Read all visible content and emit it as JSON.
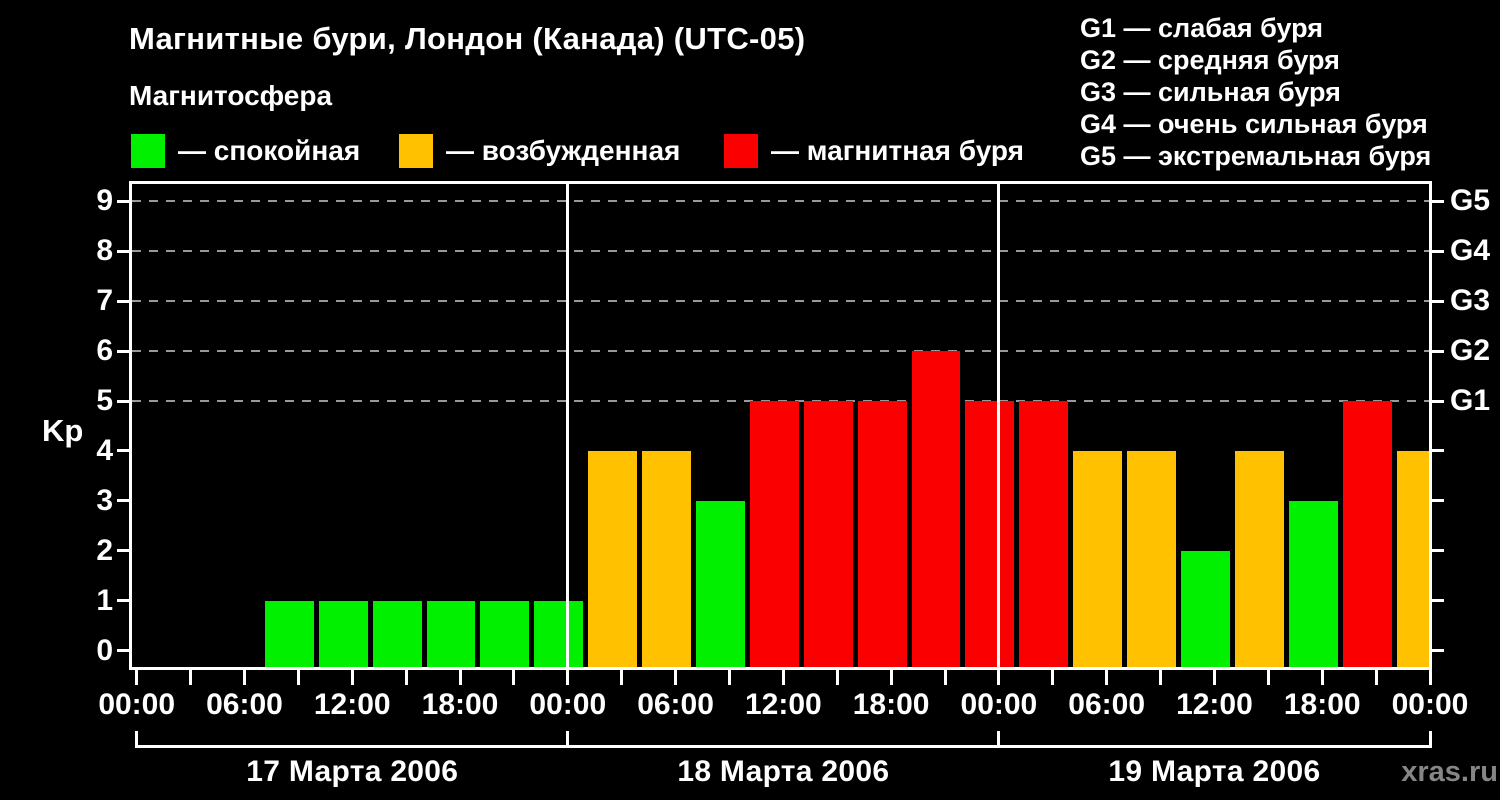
{
  "header": {
    "title": "Магнитные бури, Лондон (Канада) (UTC-05)",
    "subtitle": "Магнитосфера"
  },
  "legend": {
    "items": [
      {
        "name": "quiet",
        "label": "— спокойная",
        "color": "#00f000"
      },
      {
        "name": "excited",
        "label": "— возбужденная",
        "color": "#ffc100"
      },
      {
        "name": "storm",
        "label": "— магнитная буря",
        "color": "#fa0000"
      }
    ]
  },
  "storm_scale_legend": {
    "items": [
      "G1 — слабая буря",
      "G2 — средняя буря",
      "G3 — сильная буря",
      "G4 — очень сильная буря",
      "G5 — экстремальная буря"
    ]
  },
  "watermark": "xras.ru",
  "chart_data": {
    "type": "bar",
    "title": "Магнитные бури, Лондон (Канада) (UTC-05)",
    "ylabel": "Kp",
    "ylim": [
      0,
      9
    ],
    "y_ticks": [
      0,
      1,
      2,
      3,
      4,
      5,
      6,
      7,
      8,
      9
    ],
    "grid_kp_levels": [
      5,
      6,
      7,
      8,
      9
    ],
    "right_axis": {
      "labels": [
        "G1",
        "G2",
        "G3",
        "G4",
        "G5"
      ],
      "kp_levels": [
        5,
        6,
        7,
        8,
        9
      ]
    },
    "x_tick_interval_hours": 3,
    "x_label_every_hours": 6,
    "x_labels_cycle": [
      "00:00",
      "06:00",
      "12:00",
      "18:00"
    ],
    "bar_interval_hours": 3,
    "bar_start_offset_hours": 1,
    "days": [
      {
        "date": "17 Марта 2006",
        "kp_values": [
          0,
          0,
          1,
          1,
          1,
          1,
          1,
          1
        ]
      },
      {
        "date": "18 Марта 2006",
        "kp_values": [
          4,
          4,
          3,
          5,
          5,
          5,
          6,
          5
        ]
      },
      {
        "date": "19 Марта 2006",
        "kp_values": [
          5,
          4,
          4,
          2,
          4,
          3,
          5,
          4
        ]
      }
    ],
    "color_rule": {
      "green_kp_max": 3,
      "orange_kp": 4,
      "red_kp_min": 5
    },
    "colors": {
      "quiet": "#00f000",
      "excited": "#ffc100",
      "storm": "#fa0000"
    }
  }
}
